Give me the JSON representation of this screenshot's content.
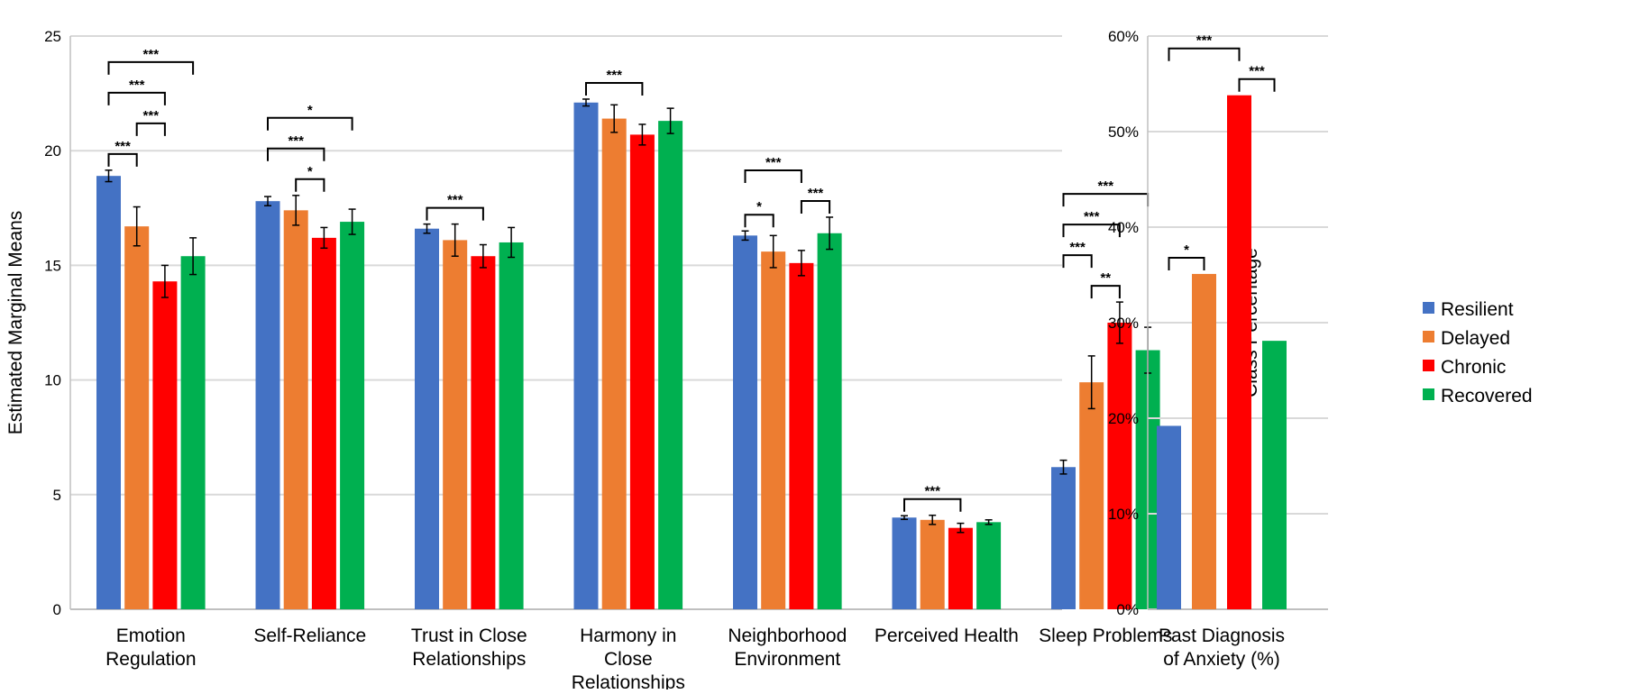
{
  "colors": {
    "Resilient": "#4472c4",
    "Delayed": "#ed7d31",
    "Chronic": "#ff0000",
    "Recovered": "#00b050",
    "grid": "#d9d9d9"
  },
  "legend": {
    "placement": "right",
    "items": [
      "Resilient",
      "Delayed",
      "Chronic",
      "Recovered"
    ]
  },
  "chart_data": [
    {
      "type": "bar",
      "ylabel": "Estimated Marginal Means",
      "xlabel": "",
      "ylim": [
        0,
        25
      ],
      "yticks": [
        "0",
        "5",
        "10",
        "15",
        "20",
        "25"
      ],
      "grid": true,
      "categories": [
        [
          "Emotion",
          "Regulation"
        ],
        [
          "Self-Reliance"
        ],
        [
          "Trust in Close",
          "Relationships"
        ],
        [
          "Harmony in",
          "Close",
          "Relationships"
        ],
        [
          "Neighborhood",
          "Environment"
        ],
        [
          "Perceived Health"
        ],
        [
          "Sleep Problems"
        ]
      ],
      "series": [
        {
          "name": "Resilient",
          "values": [
            18.9,
            17.8,
            16.6,
            22.1,
            16.3,
            4.0,
            6.2
          ],
          "err": [
            0.25,
            0.2,
            0.2,
            0.15,
            0.2,
            0.08,
            0.3
          ]
        },
        {
          "name": "Delayed",
          "values": [
            16.7,
            17.4,
            16.1,
            21.4,
            15.6,
            3.9,
            9.9
          ],
          "err": [
            0.85,
            0.65,
            0.7,
            0.6,
            0.7,
            0.2,
            1.15
          ]
        },
        {
          "name": "Chronic",
          "values": [
            14.3,
            16.2,
            15.4,
            20.7,
            15.1,
            3.55,
            12.5
          ],
          "err": [
            0.7,
            0.45,
            0.5,
            0.45,
            0.55,
            0.2,
            0.9
          ]
        },
        {
          "name": "Recovered",
          "values": [
            15.4,
            16.9,
            16.0,
            21.3,
            16.4,
            3.8,
            11.3
          ],
          "err": [
            0.8,
            0.55,
            0.65,
            0.55,
            0.7,
            0.1,
            1.0
          ]
        }
      ],
      "significance": [
        {
          "category": 0,
          "from": 0,
          "to": 3,
          "label": "***"
        },
        {
          "category": 0,
          "from": 0,
          "to": 2,
          "label": "***"
        },
        {
          "category": 0,
          "from": 0,
          "to": 1,
          "label": "***"
        },
        {
          "category": 0,
          "from": 1,
          "to": 2,
          "label": "***"
        },
        {
          "category": 1,
          "from": 0,
          "to": 3,
          "label": "*"
        },
        {
          "category": 1,
          "from": 0,
          "to": 2,
          "label": "***"
        },
        {
          "category": 1,
          "from": 1,
          "to": 2,
          "label": "*"
        },
        {
          "category": 2,
          "from": 0,
          "to": 2,
          "label": "***"
        },
        {
          "category": 3,
          "from": 0,
          "to": 2,
          "label": "***"
        },
        {
          "category": 4,
          "from": 0,
          "to": 2,
          "label": "***"
        },
        {
          "category": 4,
          "from": 0,
          "to": 1,
          "label": "*"
        },
        {
          "category": 4,
          "from": 2,
          "to": 3,
          "label": "***"
        },
        {
          "category": 5,
          "from": 0,
          "to": 2,
          "label": "***"
        },
        {
          "category": 6,
          "from": 0,
          "to": 3,
          "label": "***"
        },
        {
          "category": 6,
          "from": 0,
          "to": 2,
          "label": "***"
        },
        {
          "category": 6,
          "from": 1,
          "to": 2,
          "label": "**"
        },
        {
          "category": 6,
          "from": 0,
          "to": 1,
          "label": "***"
        }
      ]
    },
    {
      "type": "bar",
      "ylabel": "Class Percentage",
      "xlabel": "",
      "ylim": [
        0,
        60
      ],
      "yticks": [
        "0%",
        "10%",
        "20%",
        "30%",
        "40%",
        "50%",
        "60%"
      ],
      "grid": true,
      "categories": [
        [
          "Past Diagnosis",
          "of Anxiety (%)"
        ]
      ],
      "series": [
        {
          "name": "Resilient",
          "values": [
            19.2
          ]
        },
        {
          "name": "Delayed",
          "values": [
            35.1
          ]
        },
        {
          "name": "Chronic",
          "values": [
            53.8
          ]
        },
        {
          "name": "Recovered",
          "values": [
            28.1
          ]
        }
      ],
      "significance": [
        {
          "category": 0,
          "from": 0,
          "to": 1,
          "label": "*"
        },
        {
          "category": 0,
          "from": 0,
          "to": 2,
          "label": "***"
        },
        {
          "category": 0,
          "from": 2,
          "to": 3,
          "label": "***"
        }
      ]
    }
  ]
}
